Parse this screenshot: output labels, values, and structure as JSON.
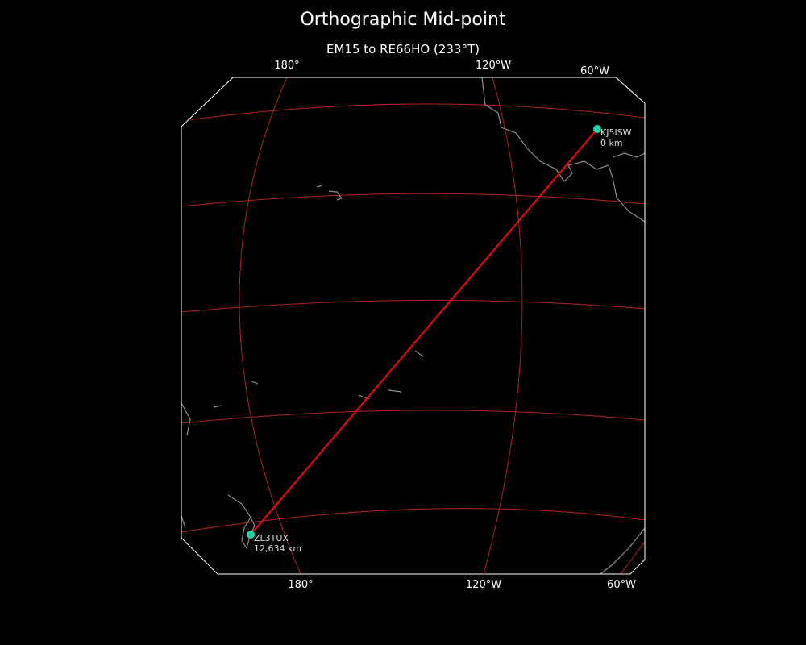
{
  "title": "Orthographic Mid-point",
  "subtitle": "EM15 to RE66HO (233°T)",
  "ticks_top": [
    "180°",
    "120°W",
    "60°W"
  ],
  "ticks_bottom": [
    "180°",
    "120°W",
    "60°W"
  ],
  "stations": [
    {
      "call": "KJ5ISW",
      "distance": "0 km"
    },
    {
      "call": "ZL3TUX",
      "distance": "12,634 km"
    }
  ],
  "colors": {
    "background": "#000000",
    "gridlines": "#b22222",
    "path": "#ff0000",
    "station_marker": "#1fd6a6",
    "coastline": "#8c8c8c",
    "map_border": "#ffffff"
  }
}
